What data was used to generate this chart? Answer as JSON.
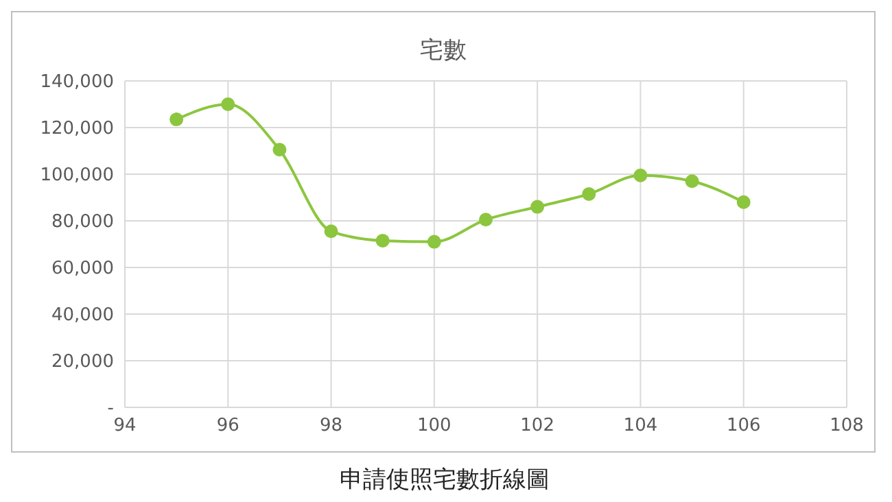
{
  "chart_data": {
    "type": "line",
    "title": "宅數",
    "x": [
      95,
      96,
      97,
      98,
      99,
      100,
      101,
      102,
      103,
      104,
      105,
      106
    ],
    "series": [
      {
        "color": "#8cc63f",
        "values": [
          123500,
          130000,
          110500,
          75500,
          71500,
          71000,
          80500,
          86000,
          91500,
          99500,
          97000,
          88000
        ]
      }
    ],
    "xlim": [
      94,
      108
    ],
    "xticks": [
      94,
      96,
      98,
      100,
      102,
      104,
      106,
      108
    ],
    "ylim": [
      0,
      140000
    ],
    "yticks": [
      {
        "value": 0,
        "label": "-"
      },
      {
        "value": 20000,
        "label": "20,000"
      },
      {
        "value": 40000,
        "label": "40,000"
      },
      {
        "value": 60000,
        "label": "60,000"
      },
      {
        "value": 80000,
        "label": "80,000"
      },
      {
        "value": 100000,
        "label": "100,000"
      },
      {
        "value": 120000,
        "label": "120,000"
      },
      {
        "value": 140000,
        "label": "140,000"
      }
    ],
    "grid": true,
    "marker": "circle",
    "line_style": "solid",
    "legend": false,
    "annotations": [
      "申請使照宅數折線圖"
    ]
  }
}
